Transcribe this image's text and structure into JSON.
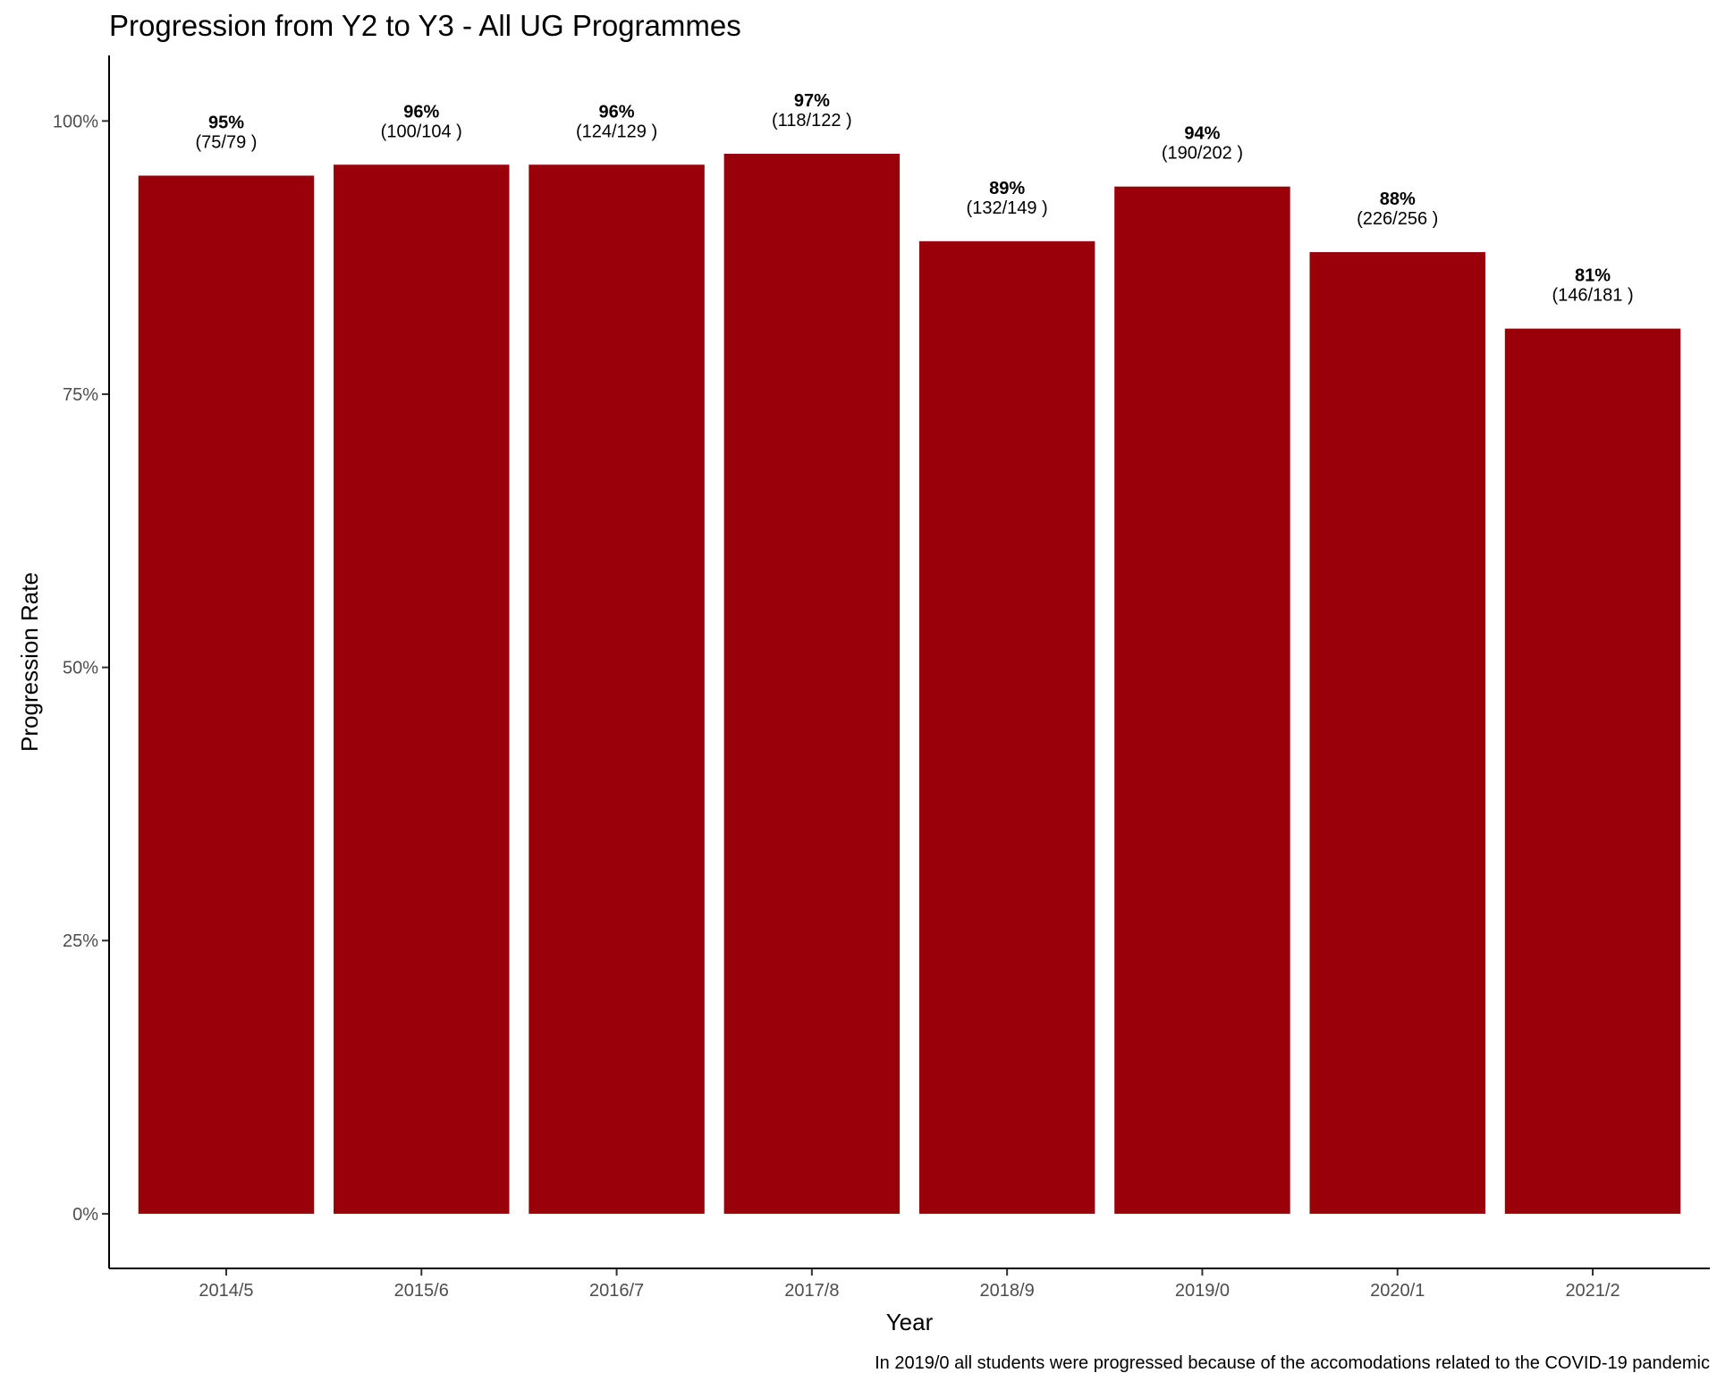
{
  "chart_data": {
    "type": "bar",
    "title": "Progression from Y2 to Y3 - All UG Programmes",
    "xlabel": "Year",
    "ylabel": "Progression Rate",
    "caption": "In 2019/0 all students were progressed because of the accomodations related to the COVID-19 pandemic",
    "categories": [
      "2014/5",
      "2015/6",
      "2016/7",
      "2017/8",
      "2018/9",
      "2019/0",
      "2020/1",
      "2021/2"
    ],
    "values": [
      95,
      96,
      96,
      97,
      89,
      94,
      88,
      81
    ],
    "value_labels": [
      "95%",
      "96%",
      "96%",
      "97%",
      "89%",
      "94%",
      "88%",
      "81%"
    ],
    "count_labels": [
      "(75/79 )",
      "(100/104 )",
      "(124/129 )",
      "(118/122 )",
      "(132/149 )",
      "(190/202 )",
      "(226/256 )",
      "(146/181 )"
    ],
    "y_ticks": [
      0,
      25,
      50,
      75,
      100
    ],
    "y_tick_labels": [
      "0%",
      "25%",
      "50%",
      "75%",
      "100%"
    ],
    "ylim": [
      -5,
      106
    ],
    "grid": false,
    "legend": "none",
    "colors": {
      "bar": "#990009"
    }
  }
}
